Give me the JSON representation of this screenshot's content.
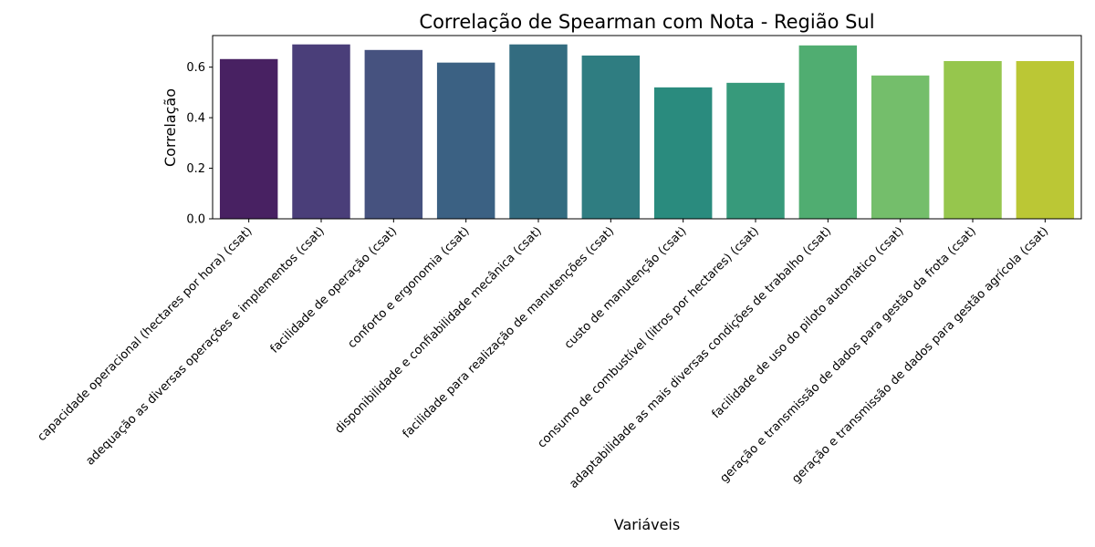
{
  "chart_data": {
    "type": "bar",
    "title": "Correlação de Spearman com Nota - Região Sul",
    "xlabel": "Variáveis",
    "ylabel": "Correlação",
    "ylim": [
      0,
      0.725
    ],
    "yticks": [
      0.0,
      0.2,
      0.4,
      0.6
    ],
    "grid": false,
    "categories": [
      "capacidade operacional (hectares por hora) (csat)",
      "adequação as diversas operações e implementos (csat)",
      "facilidade de operação (csat)",
      "conforto e ergonomia (csat)",
      "disponibilidade e confiabilidade mecânica  (csat)",
      "facilidade para realização de manutenções (csat)",
      "custo de manutenção (csat)",
      "consumo de combustível (litros por hectares) (csat)",
      "adaptabilidade as mais diversas condições de trabalho (csat)",
      "facilidade de uso do piloto automático (csat)",
      "geração e transmissão de dados para gestão da frota (csat)",
      "geração e transmissão de dados para gestão agrícola (csat)"
    ],
    "values": [
      0.632,
      0.69,
      0.668,
      0.618,
      0.69,
      0.646,
      0.52,
      0.538,
      0.686,
      0.567,
      0.624,
      0.624
    ],
    "colors": [
      "#482162",
      "#4a3e79",
      "#46527f",
      "#3b6183",
      "#336c80",
      "#2f7d81",
      "#2a8b7e",
      "#379a7b",
      "#50ad71",
      "#74be6b",
      "#96c64d",
      "#bbc735"
    ]
  }
}
